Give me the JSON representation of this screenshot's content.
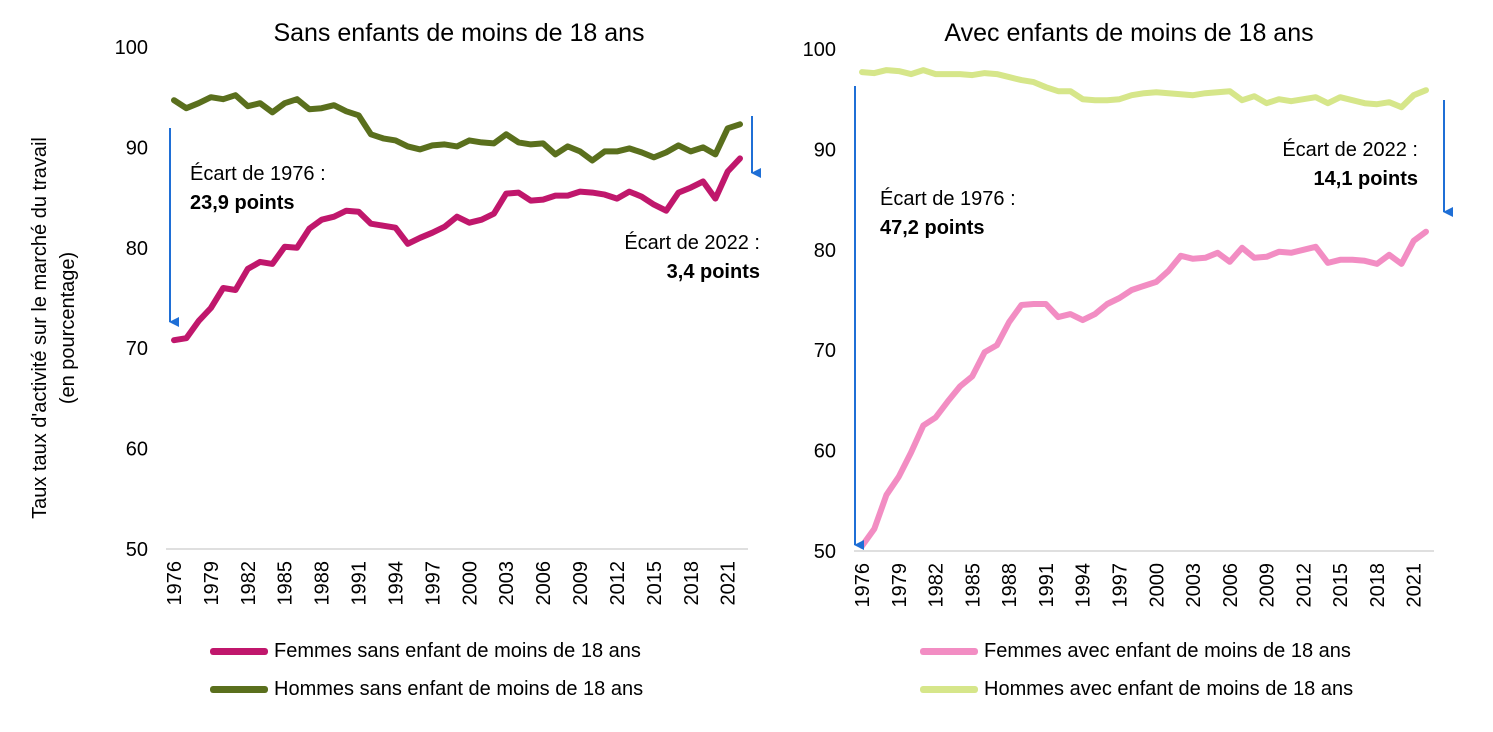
{
  "shared": {
    "ylabel_line1": "Taux taux d'activité sur le marché du travail",
    "ylabel_line2": "(en pourcentage)"
  },
  "chart_data": [
    {
      "type": "line",
      "title": "Sans enfants de moins de 18 ans",
      "ylim": [
        50,
        100
      ],
      "yticks": [
        50,
        60,
        70,
        80,
        90,
        100
      ],
      "x": [
        1976,
        1977,
        1978,
        1979,
        1980,
        1981,
        1982,
        1983,
        1984,
        1985,
        1986,
        1987,
        1988,
        1989,
        1990,
        1991,
        1992,
        1993,
        1994,
        1995,
        1996,
        1997,
        1998,
        1999,
        2000,
        2001,
        2002,
        2003,
        2004,
        2005,
        2006,
        2007,
        2008,
        2009,
        2010,
        2011,
        2012,
        2013,
        2014,
        2015,
        2016,
        2017,
        2018,
        2019,
        2020,
        2021,
        2022
      ],
      "xtick_labels": [
        "1976",
        "1979",
        "1982",
        "1985",
        "1988",
        "1991",
        "1994",
        "1997",
        "2000",
        "2003",
        "2006",
        "2009",
        "2012",
        "2015",
        "2018",
        "2021"
      ],
      "series": [
        {
          "name": "Femmes sans enfant de moins de 18 ans",
          "color": "#c0176c",
          "values": [
            70.8,
            71.0,
            72.7,
            74.0,
            76.0,
            75.8,
            77.9,
            78.6,
            78.4,
            80.1,
            80.0,
            81.9,
            82.8,
            83.1,
            83.7,
            83.6,
            82.4,
            82.2,
            82.0,
            80.4,
            81.0,
            81.5,
            82.1,
            83.1,
            82.5,
            82.8,
            83.4,
            85.4,
            85.5,
            84.7,
            84.8,
            85.2,
            85.2,
            85.6,
            85.5,
            85.3,
            84.9,
            85.6,
            85.1,
            84.3,
            83.7,
            85.5,
            86.0,
            86.6,
            84.9,
            87.6,
            88.9
          ]
        },
        {
          "name": "Hommes sans enfant de moins de 18 ans",
          "color": "#5a6f1d",
          "values": [
            94.7,
            93.9,
            94.4,
            95.0,
            94.8,
            95.2,
            94.1,
            94.4,
            93.5,
            94.4,
            94.8,
            93.8,
            93.9,
            94.2,
            93.6,
            93.2,
            91.3,
            90.9,
            90.7,
            90.1,
            89.8,
            90.2,
            90.3,
            90.1,
            90.7,
            90.5,
            90.4,
            91.3,
            90.5,
            90.3,
            90.4,
            89.3,
            90.1,
            89.6,
            88.7,
            89.6,
            89.6,
            89.9,
            89.5,
            89.0,
            89.5,
            90.2,
            89.6,
            90.0,
            89.3,
            91.9,
            92.3
          ]
        }
      ],
      "annotations": [
        {
          "label": "Écart de 1976 :",
          "value": "23,9 points"
        },
        {
          "label": "Écart de 2022 :",
          "value": "3,4 points"
        }
      ]
    },
    {
      "type": "line",
      "title": "Avec enfants de moins de 18 ans",
      "ylim": [
        50,
        100
      ],
      "yticks": [
        50,
        60,
        70,
        80,
        90,
        100
      ],
      "x": [
        1976,
        1977,
        1978,
        1979,
        1980,
        1981,
        1982,
        1983,
        1984,
        1985,
        1986,
        1987,
        1988,
        1989,
        1990,
        1991,
        1992,
        1993,
        1994,
        1995,
        1996,
        1997,
        1998,
        1999,
        2000,
        2001,
        2002,
        2003,
        2004,
        2005,
        2006,
        2007,
        2008,
        2009,
        2010,
        2011,
        2012,
        2013,
        2014,
        2015,
        2016,
        2017,
        2018,
        2019,
        2020,
        2021,
        2022
      ],
      "xtick_labels": [
        "1976",
        "1979",
        "1982",
        "1985",
        "1988",
        "1991",
        "1994",
        "1997",
        "2000",
        "2003",
        "2006",
        "2009",
        "2012",
        "2015",
        "2018",
        "2021"
      ],
      "series": [
        {
          "name": "Femmes avec enfant de moins de 18 ans",
          "color": "#f28dc3",
          "values": [
            50.5,
            52.2,
            55.6,
            57.4,
            59.8,
            62.5,
            63.3,
            64.9,
            66.4,
            67.4,
            69.8,
            70.5,
            72.8,
            74.5,
            74.6,
            74.6,
            73.3,
            73.6,
            73.0,
            73.6,
            74.6,
            75.2,
            76.0,
            76.4,
            76.8,
            77.9,
            79.4,
            79.1,
            79.2,
            79.7,
            78.8,
            80.2,
            79.2,
            79.3,
            79.8,
            79.7,
            80.0,
            80.3,
            78.7,
            79.0,
            79.0,
            78.9,
            78.6,
            79.5,
            78.6,
            80.9,
            81.8
          ]
        },
        {
          "name": "Hommes avec enfant de moins de 18 ans",
          "color": "#d6e68a",
          "values": [
            97.7,
            97.6,
            97.9,
            97.8,
            97.5,
            97.9,
            97.5,
            97.5,
            97.5,
            97.4,
            97.6,
            97.5,
            97.2,
            96.9,
            96.7,
            96.2,
            95.8,
            95.8,
            95.0,
            94.9,
            94.9,
            95.0,
            95.4,
            95.6,
            95.7,
            95.6,
            95.5,
            95.4,
            95.6,
            95.7,
            95.8,
            94.9,
            95.3,
            94.6,
            95.0,
            94.8,
            95.0,
            95.2,
            94.6,
            95.2,
            94.9,
            94.6,
            94.5,
            94.7,
            94.2,
            95.4,
            95.9
          ]
        }
      ],
      "annotations": [
        {
          "label": "Écart de 1976 :",
          "value": "47,2 points"
        },
        {
          "label": "Écart de 2022 :",
          "value": "14,1 points"
        }
      ]
    }
  ]
}
